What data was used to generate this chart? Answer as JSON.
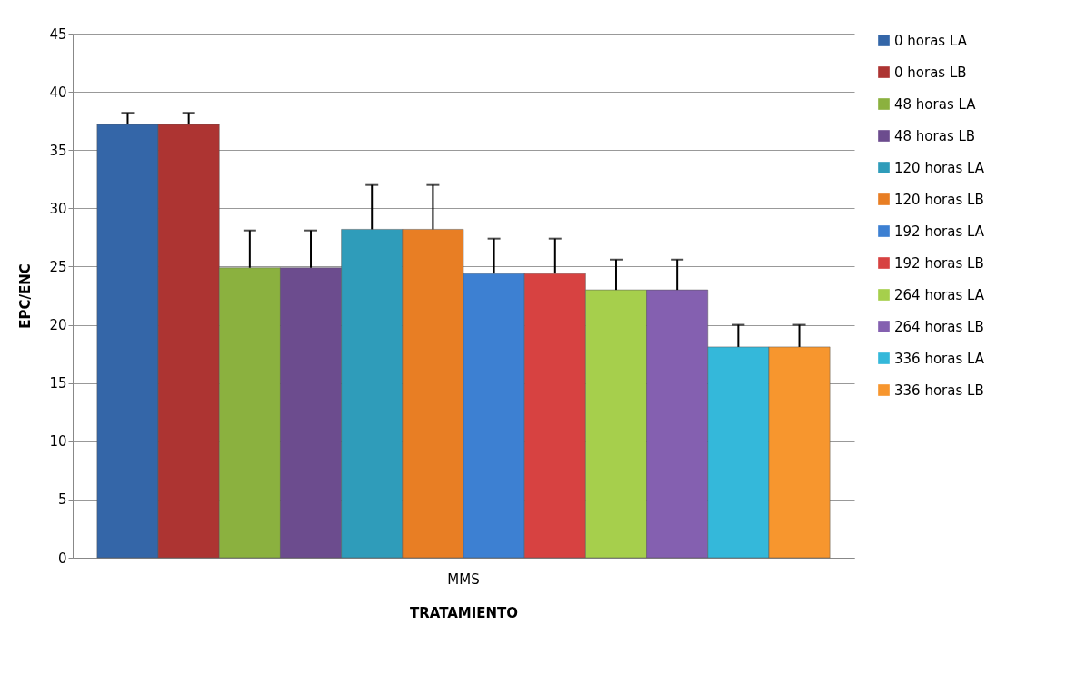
{
  "chart_data": {
    "type": "bar",
    "xlabel": "TRATAMIENTO",
    "ylabel": "EPC/ENC",
    "categories": [
      "MMS"
    ],
    "ylim": [
      0,
      45
    ],
    "yticks": [
      0,
      5,
      10,
      15,
      20,
      25,
      30,
      35,
      40,
      45
    ],
    "grid": "y",
    "legend": "right",
    "series": [
      {
        "name": "0 horas LA",
        "color": "#3466a8",
        "values": [
          37.2
        ],
        "errors": [
          [
            37.2,
            38.2
          ]
        ]
      },
      {
        "name": "0 horas LB",
        "color": "#ad3432",
        "values": [
          37.2
        ],
        "errors": [
          [
            37.2,
            38.2
          ]
        ]
      },
      {
        "name": "48 horas LA",
        "color": "#8bb13f",
        "values": [
          24.9
        ],
        "errors": [
          [
            24.9,
            28.1
          ]
        ]
      },
      {
        "name": "48 horas LB",
        "color": "#6c4c8e",
        "values": [
          24.9
        ],
        "errors": [
          [
            24.9,
            28.1
          ]
        ]
      },
      {
        "name": "120 horas LA",
        "color": "#2f9cba",
        "values": [
          28.2
        ],
        "errors": [
          [
            28.2,
            32.0
          ]
        ]
      },
      {
        "name": "120 horas LB",
        "color": "#e87e24",
        "values": [
          28.2
        ],
        "errors": [
          [
            28.2,
            32.0
          ]
        ]
      },
      {
        "name": "192 horas LA",
        "color": "#3d80d2",
        "values": [
          24.4
        ],
        "errors": [
          [
            24.4,
            27.4
          ]
        ]
      },
      {
        "name": "192 horas LB",
        "color": "#d74241",
        "values": [
          24.4
        ],
        "errors": [
          [
            24.4,
            27.4
          ]
        ]
      },
      {
        "name": "264 horas LA",
        "color": "#a6cf4c",
        "values": [
          23.0
        ],
        "errors": [
          [
            23.0,
            25.6
          ]
        ]
      },
      {
        "name": "264 horas LB",
        "color": "#8460b0",
        "values": [
          23.0
        ],
        "errors": [
          [
            23.0,
            25.6
          ]
        ]
      },
      {
        "name": "336 horas LA",
        "color": "#34b8da",
        "values": [
          18.1
        ],
        "errors": [
          [
            18.1,
            20.0
          ]
        ]
      },
      {
        "name": "336 horas LB",
        "color": "#f7962e",
        "values": [
          18.1
        ],
        "errors": [
          [
            18.1,
            20.0
          ]
        ]
      }
    ]
  }
}
